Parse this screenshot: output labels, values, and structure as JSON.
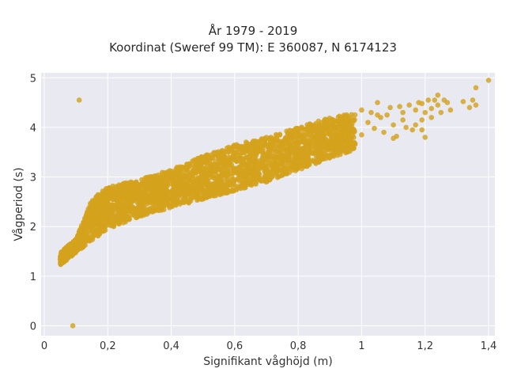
{
  "chart_data": {
    "type": "scatter",
    "title_lines": [
      "År 1979 - 2019",
      "Koordinat (Sweref 99 TM): E 360087, N 6174123"
    ],
    "xlabel": "Signifikant våghöjd (m)",
    "ylabel": "Vågperiod (s)",
    "xlim": [
      -0.01,
      1.42
    ],
    "ylim": [
      -0.2,
      5.1
    ],
    "x_ticks": [
      0,
      0.2,
      0.4,
      0.6,
      0.8,
      1,
      1.2,
      1.4
    ],
    "x_tick_labels": [
      "0",
      "0,2",
      "0,4",
      "0,6",
      "0,8",
      "1",
      "1,2",
      "1,4"
    ],
    "y_ticks": [
      0,
      1,
      2,
      3,
      4,
      5
    ],
    "y_tick_labels": [
      "0",
      "1",
      "2",
      "3",
      "4",
      "5"
    ],
    "grid": true,
    "background_color": "#e9e9f1",
    "grid_color": "#ffffff",
    "marker_color": "#d4a21c",
    "main_cloud": {
      "x_range": [
        0.05,
        0.98
      ],
      "lower_edge": [
        [
          0.05,
          1.22
        ],
        [
          0.1,
          1.48
        ],
        [
          0.2,
          1.95
        ],
        [
          0.3,
          2.2
        ],
        [
          0.4,
          2.38
        ],
        [
          0.5,
          2.55
        ],
        [
          0.6,
          2.72
        ],
        [
          0.7,
          2.9
        ],
        [
          0.8,
          3.12
        ],
        [
          0.9,
          3.38
        ],
        [
          0.98,
          3.55
        ]
      ],
      "upper_edge": [
        [
          0.05,
          1.48
        ],
        [
          0.1,
          1.75
        ],
        [
          0.15,
          2.55
        ],
        [
          0.2,
          2.8
        ],
        [
          0.3,
          2.95
        ],
        [
          0.4,
          3.15
        ],
        [
          0.5,
          3.42
        ],
        [
          0.6,
          3.65
        ],
        [
          0.7,
          3.8
        ],
        [
          0.8,
          4.0
        ],
        [
          0.9,
          4.2
        ],
        [
          0.98,
          4.3
        ]
      ]
    },
    "tail_points": [
      [
        1.0,
        4.35
      ],
      [
        1.0,
        3.85
      ],
      [
        1.02,
        4.1
      ],
      [
        1.03,
        4.3
      ],
      [
        1.04,
        3.98
      ],
      [
        1.05,
        4.5
      ],
      [
        1.06,
        4.2
      ],
      [
        1.07,
        3.9
      ],
      [
        1.08,
        4.25
      ],
      [
        1.09,
        4.4
      ],
      [
        1.1,
        4.05
      ],
      [
        1.11,
        3.82
      ],
      [
        1.12,
        4.42
      ],
      [
        1.13,
        4.3
      ],
      [
        1.14,
        4.0
      ],
      [
        1.15,
        4.45
      ],
      [
        1.16,
        3.95
      ],
      [
        1.17,
        4.05
      ],
      [
        1.18,
        4.5
      ],
      [
        1.19,
        4.48
      ],
      [
        1.19,
        4.15
      ],
      [
        1.2,
        4.3
      ],
      [
        1.21,
        4.55
      ],
      [
        1.22,
        4.2
      ],
      [
        1.22,
        4.38
      ],
      [
        1.23,
        4.55
      ],
      [
        1.24,
        4.45
      ],
      [
        1.24,
        4.65
      ],
      [
        1.25,
        4.3
      ],
      [
        1.26,
        4.55
      ],
      [
        1.27,
        4.5
      ],
      [
        1.28,
        4.35
      ],
      [
        1.32,
        4.52
      ],
      [
        1.34,
        4.4
      ],
      [
        1.35,
        4.55
      ],
      [
        1.36,
        4.8
      ],
      [
        1.36,
        4.45
      ],
      [
        1.4,
        4.95
      ],
      [
        1.2,
        3.8
      ],
      [
        1.19,
        3.95
      ],
      [
        1.1,
        3.78
      ],
      [
        1.05,
        4.25
      ],
      [
        1.13,
        4.15
      ],
      [
        1.17,
        4.35
      ]
    ],
    "outlier_points": [
      [
        0.11,
        4.55
      ],
      [
        0.09,
        0.0
      ]
    ]
  }
}
